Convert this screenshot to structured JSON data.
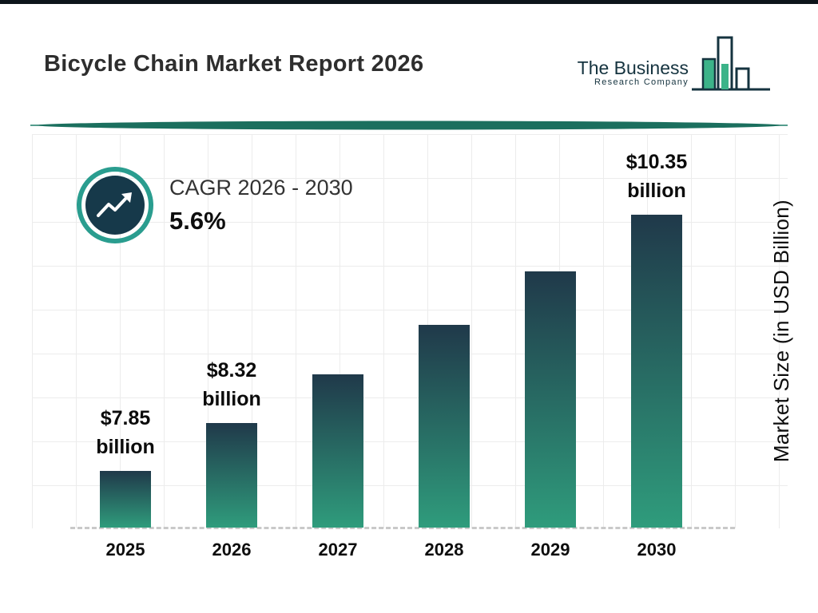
{
  "header": {
    "title": "Bicycle Chain Market Report 2026",
    "logo": {
      "line1": "The Business",
      "line2": "Research Company"
    }
  },
  "cagr": {
    "label": "CAGR 2026 - 2030",
    "value": "5.6%"
  },
  "chart_data": {
    "type": "bar",
    "title": "Bicycle Chain Market Report 2026",
    "categories": [
      "2025",
      "2026",
      "2027",
      "2028",
      "2029",
      "2030"
    ],
    "values": [
      7.85,
      8.32,
      8.79,
      9.28,
      9.8,
      10.35
    ],
    "bar_labels": [
      {
        "amount": "$7.85",
        "unit": "billion"
      },
      {
        "amount": "$8.32",
        "unit": "billion"
      },
      null,
      null,
      null,
      {
        "amount": "$10.35",
        "unit": "billion"
      }
    ],
    "xlabel": "",
    "ylabel": "Market Size (in USD Billion)",
    "ylim": [
      7.3,
      10.35
    ],
    "grid": true,
    "legend": "none",
    "cagr_2026_2030": "5.6%",
    "bar_gradient": [
      "#20394a",
      "#2f9c7c"
    ]
  },
  "colors": {
    "accent_teal": "#1d7d68",
    "navy": "#15333f",
    "logo_green": "#3cb389",
    "badge_ring": "#2a9d8f",
    "badge_fill": "#16394a"
  }
}
